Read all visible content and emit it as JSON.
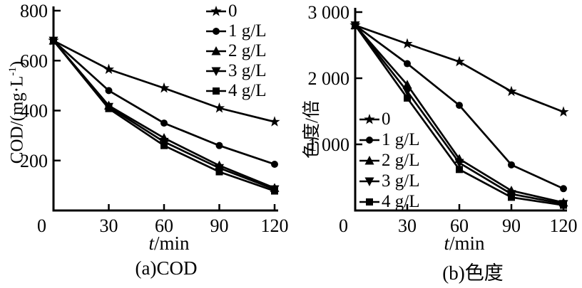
{
  "figure": {
    "background_color": "#ffffff",
    "ink_color": "#000000"
  },
  "chart_data": [
    {
      "id": "a",
      "type": "line",
      "caption": "(a)COD",
      "xlabel": "t/min",
      "xlabel_var": "t",
      "xlabel_rest": "/min",
      "ylabel": "COD/(mg·L⁻¹)",
      "ylabel_prefix": "COD/(mg·L",
      "ylabel_sup": "-1",
      "ylabel_suffix": ")",
      "xlim": [
        0,
        120
      ],
      "ylim": [
        0,
        800
      ],
      "grid": false,
      "legend_position": "top-right",
      "x": [
        0,
        30,
        60,
        90,
        120
      ],
      "xticks": [
        {
          "value": 30,
          "label": "30"
        },
        {
          "value": 60,
          "label": "60"
        },
        {
          "value": 90,
          "label": "90"
        },
        {
          "value": 120,
          "label": "120"
        }
      ],
      "yticks": [
        {
          "value": 0,
          "label": "0"
        },
        {
          "value": 200,
          "label": "200"
        },
        {
          "value": 400,
          "label": "400"
        },
        {
          "value": 600,
          "label": "600"
        },
        {
          "value": 800,
          "label": "800"
        }
      ],
      "series": [
        {
          "name": "0",
          "marker": "star",
          "values": [
            680,
            565,
            490,
            410,
            355
          ]
        },
        {
          "name": "1 g/L",
          "marker": "circle",
          "values": [
            680,
            480,
            350,
            260,
            185
          ]
        },
        {
          "name": "2 g/L",
          "marker": "triangle-up",
          "values": [
            680,
            420,
            290,
            180,
            90
          ]
        },
        {
          "name": "3 g/L",
          "marker": "triangle-down",
          "values": [
            680,
            415,
            275,
            170,
            85
          ]
        },
        {
          "name": "4 g/L",
          "marker": "square",
          "values": [
            680,
            408,
            260,
            155,
            78
          ]
        }
      ]
    },
    {
      "id": "b",
      "type": "line",
      "caption": "(b)色度",
      "xlabel": "t/min",
      "xlabel_var": "t",
      "xlabel_rest": "/min",
      "ylabel": "色度/倍",
      "xlim": [
        0,
        120
      ],
      "ylim": [
        0,
        3000
      ],
      "grid": false,
      "legend_position": "middle-left",
      "x": [
        0,
        30,
        60,
        90,
        120
      ],
      "xticks": [
        {
          "value": 30,
          "label": "30"
        },
        {
          "value": 60,
          "label": "60"
        },
        {
          "value": 90,
          "label": "90"
        },
        {
          "value": 120,
          "label": "120"
        }
      ],
      "yticks": [
        {
          "value": 0,
          "label": "0"
        },
        {
          "value": 1000,
          "label": "1 000"
        },
        {
          "value": 2000,
          "label": "2 000"
        },
        {
          "value": 3000,
          "label": "3 000"
        }
      ],
      "series": [
        {
          "name": "0",
          "marker": "star",
          "values": [
            2800,
            2520,
            2250,
            1800,
            1490
          ]
        },
        {
          "name": "1 g/L",
          "marker": "circle",
          "values": [
            2800,
            2220,
            1590,
            690,
            330
          ]
        },
        {
          "name": "2 g/L",
          "marker": "triangle-up",
          "values": [
            2800,
            1900,
            780,
            300,
            120
          ]
        },
        {
          "name": "3 g/L",
          "marker": "triangle-down",
          "values": [
            2800,
            1800,
            720,
            250,
            100
          ]
        },
        {
          "name": "4 g/L",
          "marker": "square",
          "values": [
            2800,
            1700,
            620,
            200,
            80
          ]
        }
      ]
    }
  ]
}
